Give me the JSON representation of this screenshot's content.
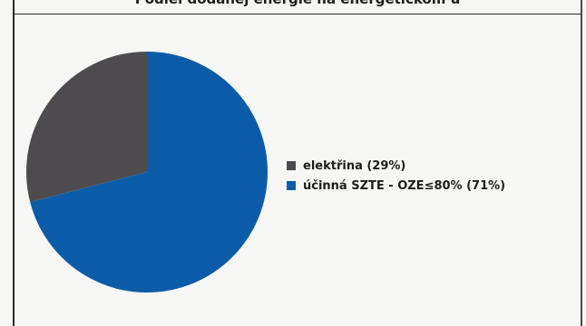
{
  "chart_data": {
    "type": "pie",
    "title": "Podiel dodanej energie na energetickom ú",
    "slices": [
      {
        "label": "elektřina (29%)",
        "value": 29,
        "color": "#4e4b4e"
      },
      {
        "label": "účinná SZTE - OZE≤80% (71%)",
        "value": 71,
        "color": "#0b5ca8"
      }
    ],
    "legend_position": "right"
  }
}
